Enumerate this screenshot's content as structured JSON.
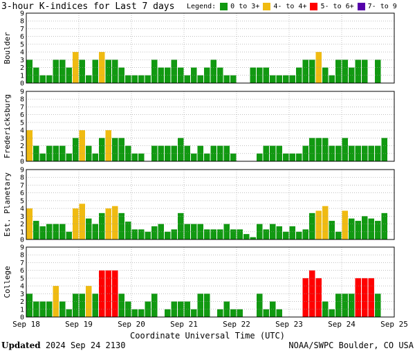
{
  "header": {
    "title": "3-hour K-indices for Last 7 days",
    "legend_label": "Legend:"
  },
  "legend": [
    {
      "label": "0 to 3+",
      "color": "#119911"
    },
    {
      "label": "4- to 4+",
      "color": "#f0bb11"
    },
    {
      "label": "5- to 6+",
      "color": "#ff0000"
    },
    {
      "label": "7- to 9",
      "color": "#5500aa"
    }
  ],
  "footer": {
    "xlabel": "Coordinate Universal Time (UTC)",
    "updated_label": "Updated",
    "updated_value": "2024 Sep 24 2130",
    "credit": "NOAA/SWPC Boulder, CO USA"
  },
  "chart_data": {
    "type": "bar",
    "x_ticks": [
      "Sep 18",
      "Sep 19",
      "Sep 20",
      "Sep 21",
      "Sep 22",
      "Sep 23",
      "Sep 24",
      "Sep 25"
    ],
    "ylim": [
      0,
      9
    ],
    "y_ticks": [
      0,
      1,
      2,
      3,
      4,
      5,
      6,
      7,
      8,
      9
    ],
    "grid": true,
    "bins_per_day": 8,
    "panels": [
      {
        "name": "Boulder",
        "values": [
          3,
          2,
          1,
          1,
          3,
          3,
          2,
          4,
          3,
          1,
          3,
          4,
          3,
          3,
          2,
          1,
          1,
          1,
          1,
          3,
          2,
          2,
          3,
          2,
          1,
          2,
          1,
          2,
          3,
          2,
          1,
          1,
          0,
          0,
          2,
          2,
          2,
          1,
          1,
          1,
          1,
          2,
          3,
          3,
          4,
          2,
          1,
          3,
          3,
          2,
          3,
          3,
          0,
          3,
          0
        ]
      },
      {
        "name": "Fredericksburg",
        "values": [
          4,
          2,
          1,
          2,
          2,
          2,
          1,
          3,
          4,
          2,
          1,
          3,
          4,
          3,
          3,
          2,
          1,
          1,
          0,
          2,
          2,
          2,
          2,
          3,
          2,
          1,
          2,
          1,
          2,
          2,
          2,
          1,
          0,
          0,
          0,
          1,
          2,
          2,
          2,
          1,
          1,
          1,
          2,
          3,
          3,
          3,
          2,
          2,
          3,
          2,
          2,
          2,
          2,
          2,
          3
        ]
      },
      {
        "name": "Est. Planetary",
        "values": [
          4,
          2.4,
          1.7,
          2,
          2,
          2,
          1,
          4,
          4.6,
          2.7,
          2,
          3.4,
          4,
          4.3,
          3.4,
          2.3,
          1.3,
          1.3,
          1,
          1.7,
          2,
          1,
          1.3,
          3.4,
          2,
          2,
          2,
          1.3,
          1.3,
          1.3,
          2,
          1.3,
          1.3,
          0.7,
          0.3,
          2,
          1.3,
          2,
          1.7,
          1,
          1.7,
          1,
          1.3,
          3.4,
          3.7,
          4.3,
          2.4,
          1,
          3.7,
          2.7,
          2.4,
          3,
          2.7,
          2.4,
          3.4
        ]
      },
      {
        "name": "College",
        "values": [
          3,
          2,
          2,
          2,
          4,
          2,
          1,
          3,
          3,
          4,
          3,
          6,
          6,
          6,
          3,
          2,
          1,
          1,
          2,
          3,
          0,
          1,
          2,
          2,
          2,
          1,
          3,
          3,
          0,
          1,
          2,
          1,
          1,
          0,
          0,
          3,
          1,
          2,
          1,
          0,
          0,
          0,
          5,
          6,
          5,
          2,
          1,
          3,
          3,
          3,
          5,
          5,
          5,
          3,
          0
        ]
      }
    ]
  }
}
